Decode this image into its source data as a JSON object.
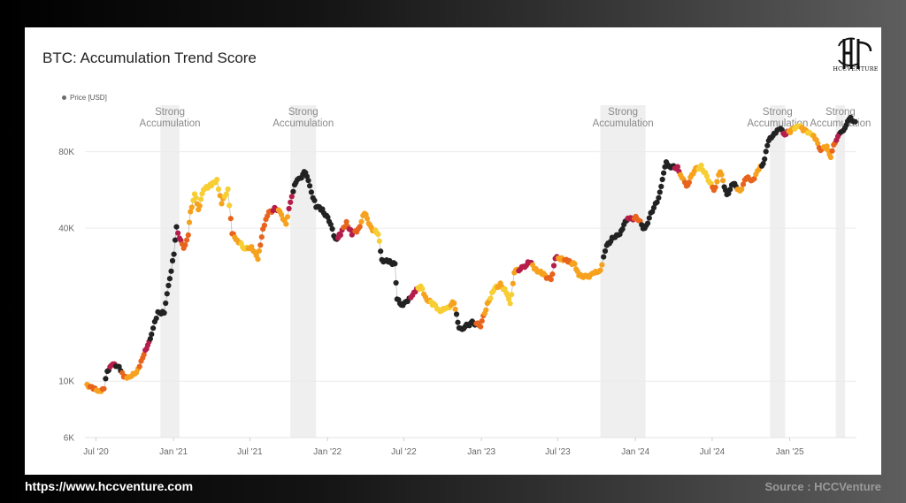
{
  "title": "BTC: Accumulation Trend Score",
  "legend_label": "Price [USD]",
  "logo_text": "HCCVENTURE",
  "footer": {
    "url": "https://www.hccventure.com",
    "source": "Source : HCCVenture"
  },
  "colors": {
    "strong": "#222222",
    "high": "#b51d4a",
    "mid": "#e8641c",
    "low": "#f6a21e",
    "weak": "#f7ce33",
    "band": "#efefef"
  },
  "chart_data": {
    "type": "scatter",
    "title": "BTC: Accumulation Trend Score",
    "y_scale": "log",
    "ylim": [
      6000,
      130000
    ],
    "y_ticks": [
      {
        "value": 6000,
        "label": "6K"
      },
      {
        "value": 10000,
        "label": "10K"
      },
      {
        "value": 40000,
        "label": "40K"
      },
      {
        "value": 80000,
        "label": "80K"
      }
    ],
    "x_range": [
      "2020-06-05",
      "2025-06-08"
    ],
    "x_ticks": [
      {
        "date": "2020-07-01",
        "label": "Jul '20"
      },
      {
        "date": "2021-01-01",
        "label": "Jan '21"
      },
      {
        "date": "2021-07-01",
        "label": "Jul '21"
      },
      {
        "date": "2022-01-01",
        "label": "Jan '22"
      },
      {
        "date": "2022-07-01",
        "label": "Jul '22"
      },
      {
        "date": "2023-01-01",
        "label": "Jan '23"
      },
      {
        "date": "2023-07-01",
        "label": "Jul '23"
      },
      {
        "date": "2024-01-01",
        "label": "Jan '24"
      },
      {
        "date": "2024-07-01",
        "label": "Jul '24"
      },
      {
        "date": "2025-01-01",
        "label": "Jan '25"
      }
    ],
    "bands": [
      {
        "start": "2020-12-01",
        "end": "2021-01-15",
        "label": "Strong Accumulation"
      },
      {
        "start": "2021-10-05",
        "end": "2021-12-05",
        "label": "Strong Accumulation"
      },
      {
        "start": "2023-10-10",
        "end": "2024-01-25",
        "label": "Strong Accumulation"
      },
      {
        "start": "2024-11-15",
        "end": "2024-12-21",
        "label": "Strong Accumulation"
      },
      {
        "start": "2025-04-20",
        "end": "2025-05-12",
        "label": "Strong Accumulation"
      }
    ],
    "series": [
      {
        "name": "Price [USD]",
        "points": [
          [
            "2020-06-10",
            9700,
            "low"
          ],
          [
            "2020-06-25",
            9300,
            "mid"
          ],
          [
            "2020-07-10",
            9200,
            "low"
          ],
          [
            "2020-07-20",
            9300,
            "mid"
          ],
          [
            "2020-07-28",
            11000,
            "strong"
          ],
          [
            "2020-08-10",
            11600,
            "high"
          ],
          [
            "2020-08-25",
            11500,
            "strong"
          ],
          [
            "2020-09-05",
            10300,
            "mid"
          ],
          [
            "2020-09-20",
            10500,
            "low"
          ],
          [
            "2020-10-05",
            10700,
            "low"
          ],
          [
            "2020-10-20",
            12500,
            "mid"
          ],
          [
            "2020-11-01",
            13700,
            "high"
          ],
          [
            "2020-11-10",
            15500,
            "strong"
          ],
          [
            "2020-11-25",
            18500,
            "strong"
          ],
          [
            "2020-12-10",
            18800,
            "strong"
          ],
          [
            "2020-12-20",
            23500,
            "strong"
          ],
          [
            "2021-01-02",
            32000,
            "strong"
          ],
          [
            "2021-01-08",
            40000,
            "strong"
          ],
          [
            "2021-01-15",
            37000,
            "high"
          ],
          [
            "2021-01-25",
            33000,
            "mid"
          ],
          [
            "2021-02-05",
            38000,
            "mid"
          ],
          [
            "2021-02-10",
            46000,
            "low"
          ],
          [
            "2021-02-20",
            55000,
            "weak"
          ],
          [
            "2021-03-01",
            47000,
            "low"
          ],
          [
            "2021-03-10",
            55000,
            "weak"
          ],
          [
            "2021-03-20",
            58000,
            "weak"
          ],
          [
            "2021-04-01",
            59000,
            "weak"
          ],
          [
            "2021-04-14",
            62000,
            "weak"
          ],
          [
            "2021-04-25",
            50000,
            "low"
          ],
          [
            "2021-05-10",
            57000,
            "weak"
          ],
          [
            "2021-05-20",
            38000,
            "mid"
          ],
          [
            "2021-06-01",
            36000,
            "low"
          ],
          [
            "2021-06-20",
            33000,
            "weak"
          ],
          [
            "2021-07-05",
            34000,
            "low"
          ],
          [
            "2021-07-20",
            30000,
            "low"
          ],
          [
            "2021-08-01",
            40000,
            "mid"
          ],
          [
            "2021-08-15",
            46000,
            "mid"
          ],
          [
            "2021-09-01",
            48000,
            "high"
          ],
          [
            "2021-09-10",
            46000,
            "low"
          ],
          [
            "2021-09-25",
            42000,
            "low"
          ],
          [
            "2021-10-05",
            50000,
            "high"
          ],
          [
            "2021-10-15",
            60000,
            "strong"
          ],
          [
            "2021-10-25",
            62000,
            "strong"
          ],
          [
            "2021-11-10",
            67000,
            "strong"
          ],
          [
            "2021-11-20",
            58000,
            "strong"
          ],
          [
            "2021-12-05",
            49000,
            "strong"
          ],
          [
            "2021-12-20",
            47000,
            "strong"
          ],
          [
            "2022-01-05",
            43000,
            "strong"
          ],
          [
            "2022-01-20",
            36000,
            "strong"
          ],
          [
            "2022-02-01",
            38000,
            "high"
          ],
          [
            "2022-02-15",
            42000,
            "mid"
          ],
          [
            "2022-02-28",
            38000,
            "high"
          ],
          [
            "2022-03-15",
            39500,
            "mid"
          ],
          [
            "2022-03-30",
            46000,
            "low"
          ],
          [
            "2022-04-15",
            40000,
            "low"
          ],
          [
            "2022-05-01",
            38000,
            "weak"
          ],
          [
            "2022-05-10",
            30000,
            "strong"
          ],
          [
            "2022-05-25",
            29500,
            "strong"
          ],
          [
            "2022-06-10",
            29000,
            "strong"
          ],
          [
            "2022-06-15",
            21000,
            "strong"
          ],
          [
            "2022-06-25",
            20000,
            "strong"
          ],
          [
            "2022-07-10",
            20500,
            "strong"
          ],
          [
            "2022-07-25",
            22500,
            "high"
          ],
          [
            "2022-08-10",
            23500,
            "weak"
          ],
          [
            "2022-08-25",
            21000,
            "low"
          ],
          [
            "2022-09-10",
            20000,
            "weak"
          ],
          [
            "2022-09-25",
            19000,
            "weak"
          ],
          [
            "2022-10-10",
            19200,
            "weak"
          ],
          [
            "2022-10-28",
            20500,
            "low"
          ],
          [
            "2022-11-09",
            16000,
            "strong"
          ],
          [
            "2022-11-20",
            16300,
            "strong"
          ],
          [
            "2022-12-10",
            17000,
            "strong"
          ],
          [
            "2022-12-30",
            16600,
            "mid"
          ],
          [
            "2023-01-15",
            20000,
            "low"
          ],
          [
            "2023-01-30",
            23000,
            "weak"
          ],
          [
            "2023-02-15",
            24000,
            "low"
          ],
          [
            "2023-03-01",
            22500,
            "weak"
          ],
          [
            "2023-03-10",
            20000,
            "weak"
          ],
          [
            "2023-03-20",
            27000,
            "low"
          ],
          [
            "2023-04-10",
            28000,
            "high"
          ],
          [
            "2023-04-25",
            29500,
            "high"
          ],
          [
            "2023-05-10",
            27500,
            "low"
          ],
          [
            "2023-05-25",
            26500,
            "low"
          ],
          [
            "2023-06-15",
            25000,
            "mid"
          ],
          [
            "2023-06-25",
            30500,
            "high"
          ],
          [
            "2023-07-10",
            30500,
            "low"
          ],
          [
            "2023-07-25",
            29500,
            "mid"
          ],
          [
            "2023-08-10",
            29000,
            "low"
          ],
          [
            "2023-08-20",
            26000,
            "low"
          ],
          [
            "2023-09-10",
            25800,
            "low"
          ],
          [
            "2023-09-25",
            26500,
            "low"
          ],
          [
            "2023-10-10",
            27500,
            "low"
          ],
          [
            "2023-10-25",
            34000,
            "strong"
          ],
          [
            "2023-11-10",
            37000,
            "strong"
          ],
          [
            "2023-11-25",
            37500,
            "strong"
          ],
          [
            "2023-12-08",
            43000,
            "strong"
          ],
          [
            "2023-12-20",
            43500,
            "high"
          ],
          [
            "2024-01-05",
            44000,
            "mid"
          ],
          [
            "2024-01-23",
            39500,
            "strong"
          ],
          [
            "2024-02-10",
            47000,
            "strong"
          ],
          [
            "2024-02-25",
            52000,
            "strong"
          ],
          [
            "2024-03-05",
            63000,
            "strong"
          ],
          [
            "2024-03-14",
            72000,
            "strong"
          ],
          [
            "2024-03-25",
            70000,
            "strong"
          ],
          [
            "2024-04-10",
            69000,
            "high"
          ],
          [
            "2024-04-20",
            64000,
            "low"
          ],
          [
            "2024-05-01",
            58000,
            "mid"
          ],
          [
            "2024-05-20",
            68000,
            "low"
          ],
          [
            "2024-06-05",
            70000,
            "weak"
          ],
          [
            "2024-06-25",
            61000,
            "weak"
          ],
          [
            "2024-07-05",
            56000,
            "mid"
          ],
          [
            "2024-07-20",
            67000,
            "low"
          ],
          [
            "2024-08-05",
            54000,
            "strong"
          ],
          [
            "2024-08-20",
            60000,
            "strong"
          ],
          [
            "2024-09-05",
            56000,
            "low"
          ],
          [
            "2024-09-20",
            63000,
            "mid"
          ],
          [
            "2024-10-05",
            62000,
            "mid"
          ],
          [
            "2024-10-20",
            68000,
            "low"
          ],
          [
            "2024-10-30",
            72000,
            "strong"
          ],
          [
            "2024-11-12",
            88000,
            "strong"
          ],
          [
            "2024-11-25",
            95000,
            "strong"
          ],
          [
            "2024-12-10",
            98000,
            "strong"
          ],
          [
            "2024-12-20",
            94000,
            "high"
          ],
          [
            "2025-01-05",
            97000,
            "low"
          ],
          [
            "2025-01-20",
            102000,
            "weak"
          ],
          [
            "2025-02-05",
            97000,
            "low"
          ],
          [
            "2025-02-20",
            95000,
            "weak"
          ],
          [
            "2025-03-05",
            88000,
            "low"
          ],
          [
            "2025-03-15",
            82000,
            "mid"
          ],
          [
            "2025-03-30",
            83000,
            "low"
          ],
          [
            "2025-04-08",
            77000,
            "low"
          ],
          [
            "2025-04-15",
            84000,
            "mid"
          ],
          [
            "2025-04-25",
            93000,
            "high"
          ],
          [
            "2025-05-05",
            95000,
            "strong"
          ],
          [
            "2025-05-15",
            103000,
            "strong"
          ],
          [
            "2025-05-25",
            108000,
            "strong"
          ],
          [
            "2025-06-05",
            105000,
            "strong"
          ]
        ]
      }
    ],
    "grid": true,
    "legend_position": "top-left"
  }
}
